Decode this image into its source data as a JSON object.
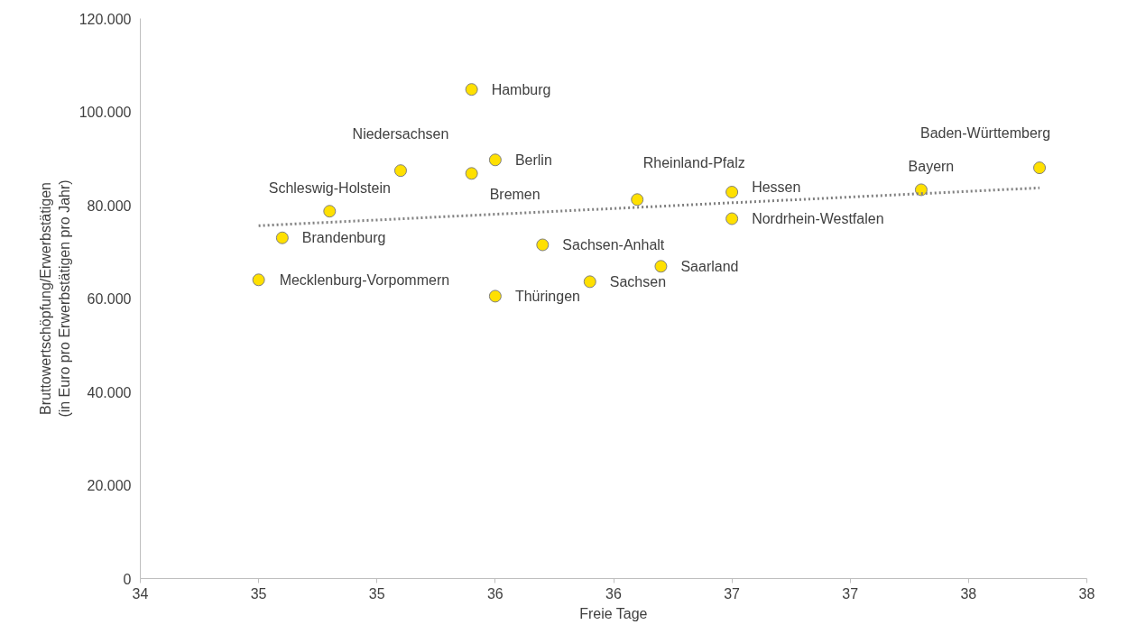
{
  "chart_data": {
    "type": "scatter",
    "xlabel": "Freie Tage",
    "ylabel": "Bruttowertschöpfung/Erwerbstätigen\n(in Euro pro Erwerbstätigen pro Jahr)",
    "xlim": [
      34,
      38
    ],
    "xticks": [
      34,
      {
        "value": 34.5,
        "label": "35"
      },
      35,
      {
        "value": 35.5,
        "label": "36"
      },
      36,
      {
        "value": 36.5,
        "label": "37"
      },
      37,
      {
        "value": 37.5,
        "label": "38"
      },
      38
    ],
    "ylim": [
      0,
      120000
    ],
    "yticks": [
      0,
      {
        "value": 20000,
        "label": "20.000"
      },
      {
        "value": 40000,
        "label": "40.000"
      },
      {
        "value": 60000,
        "label": "60.000"
      },
      {
        "value": 80000,
        "label": "80.000"
      },
      {
        "value": 100000,
        "label": "100.000"
      },
      {
        "value": 120000,
        "label": "120.000"
      }
    ],
    "grid": false,
    "series": [
      {
        "marker": "circle",
        "color": "#ffe000",
        "x": [
          34.5,
          34.6,
          34.8,
          35.1,
          35.4,
          35.4,
          35.5,
          35.5,
          35.7,
          35.9,
          36.1,
          36.2,
          36.5,
          36.5,
          37.3,
          37.8
        ],
        "values": [
          64000,
          73000,
          78700,
          87400,
          86800,
          104800,
          89700,
          60500,
          71500,
          63600,
          81200,
          66900,
          82800,
          77100,
          83300,
          88000
        ]
      },
      {
        "type": "line",
        "marker": "none",
        "line_style": "dotted",
        "color": "#808080",
        "x": [
          34.5,
          37.8
        ],
        "values": [
          75600,
          83700
        ]
      }
    ],
    "annotations": [
      {
        "text": "Mecklenburg-Vorpommern",
        "x": 34.5,
        "y": 64000
      },
      {
        "text": "Brandenburg",
        "x": 34.6,
        "y": 73000
      },
      {
        "text": "Schleswig-Holstein",
        "x": 34.8,
        "y": 78700
      },
      {
        "text": "Niedersachsen",
        "x": 35.1,
        "y": 87400
      },
      {
        "text": "Bremen",
        "x": 35.4,
        "y": 86800
      },
      {
        "text": "Hamburg",
        "x": 35.4,
        "y": 104800
      },
      {
        "text": "Berlin",
        "x": 35.5,
        "y": 89700
      },
      {
        "text": "Thüringen",
        "x": 35.5,
        "y": 60500
      },
      {
        "text": "Sachsen-Anhalt",
        "x": 35.7,
        "y": 71500
      },
      {
        "text": "Sachsen",
        "x": 35.9,
        "y": 63600
      },
      {
        "text": "Rheinland-Pfalz",
        "x": 36.1,
        "y": 81200
      },
      {
        "text": "Saarland",
        "x": 36.2,
        "y": 66900
      },
      {
        "text": "Hessen",
        "x": 36.5,
        "y": 82800
      },
      {
        "text": "Nordrhein-Westfalen",
        "x": 36.5,
        "y": 77100
      },
      {
        "text": "Bayern",
        "x": 37.3,
        "y": 83300
      },
      {
        "text": "Baden-Württemberg",
        "x": 37.8,
        "y": 88000
      }
    ]
  }
}
